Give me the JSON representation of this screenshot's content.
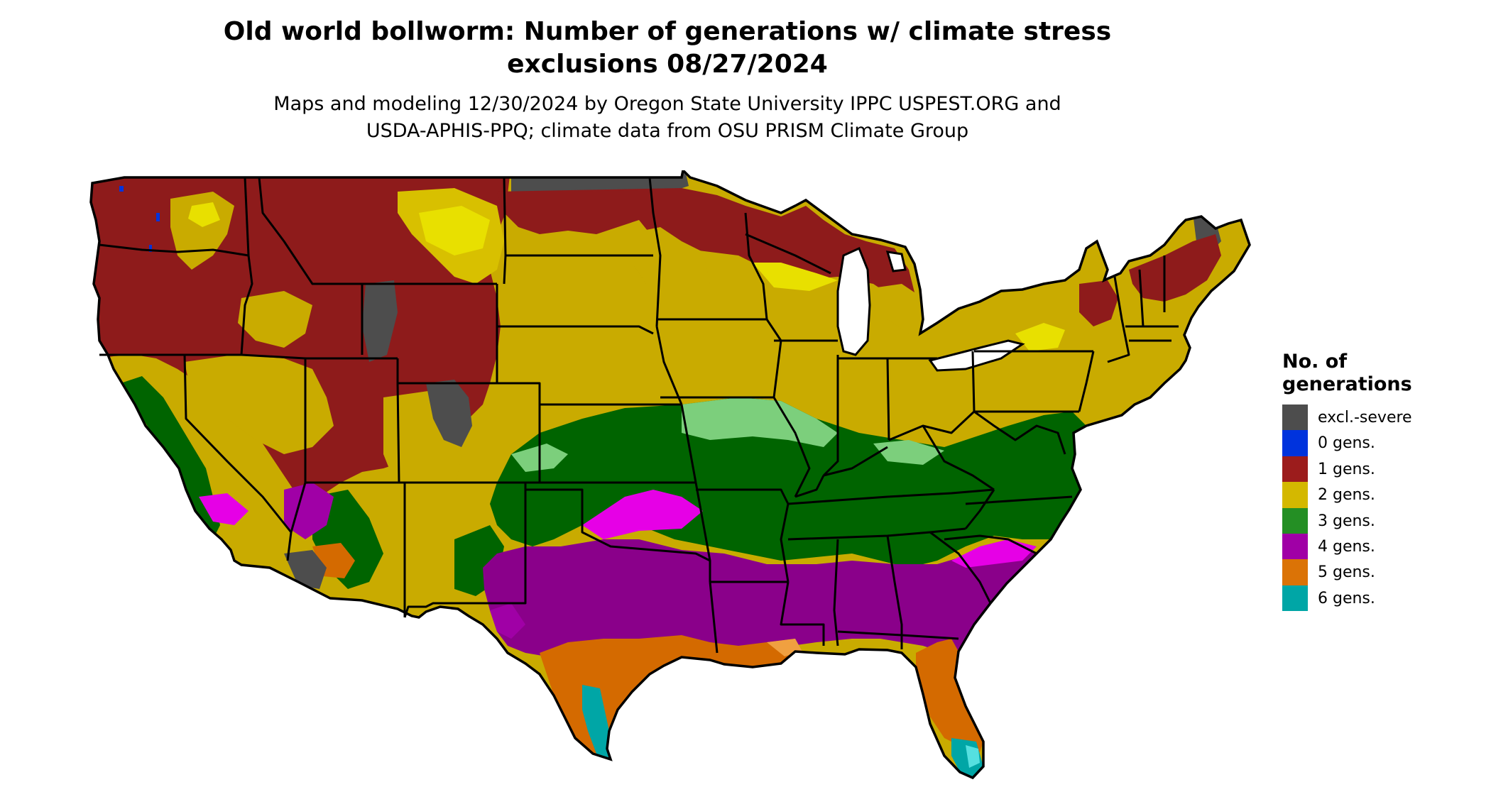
{
  "title": {
    "line1": "Old world bollworm: Number of generations w/ climate stress",
    "line2": "exclusions 08/27/2024"
  },
  "subtitle": {
    "line1": "Maps and modeling 12/30/2024 by Oregon State University IPPC USPEST.ORG and",
    "line2": "USDA-APHIS-PPQ; climate data from OSU PRISM Climate Group"
  },
  "legend": {
    "title_line1": "No. of",
    "title_line2": "generations",
    "items": [
      {
        "label": "excl.-severe",
        "color": "#4d4d4d"
      },
      {
        "label": "0 gens.",
        "color": "#0033dd"
      },
      {
        "label": "1 gens.",
        "color": "#9c1c1c"
      },
      {
        "label": "2 gens.",
        "color": "#d4b800"
      },
      {
        "label": "3 gens.",
        "color": "#248f24"
      },
      {
        "label": "4 gens.",
        "color": "#a000a6"
      },
      {
        "label": "5 gens.",
        "color": "#db7306"
      },
      {
        "label": "6 gens.",
        "color": "#00a6a6"
      }
    ]
  },
  "map": {
    "region": "Contiguous United States",
    "colors": {
      "excl_severe": "#4d4d4d",
      "gen0": "#0033dd",
      "gen1": "#8e1b1b",
      "gen2": "#c9ab00",
      "gen2_light": "#e8e000",
      "gen3": "#006400",
      "gen3_light": "#7ccf7c",
      "gen4": "#8a008a",
      "gen4_light": "#e600e6",
      "gen5": "#d46a00",
      "gen5_light": "#f0a040",
      "gen6": "#00a6a6",
      "gen6_light": "#55e0e0",
      "lakes": "#ffffff",
      "borders": "#000000"
    }
  }
}
